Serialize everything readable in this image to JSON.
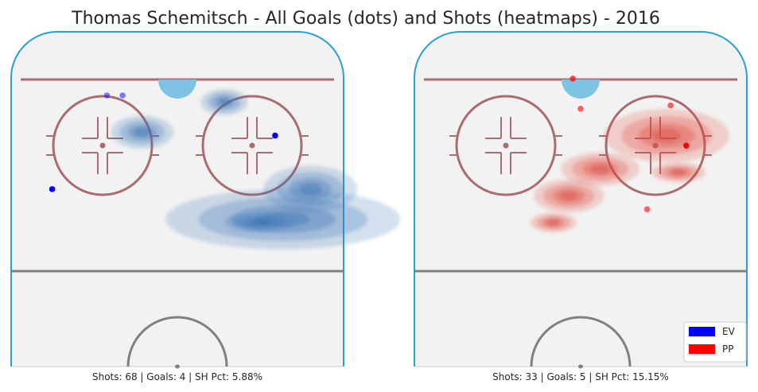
{
  "chart_data": {
    "type": "scatter",
    "title": "Thomas Schemitsch - All Goals (dots) and Shots (heatmaps) - 2016",
    "legend": {
      "placement": "bottom-right",
      "entries": [
        {
          "label": "EV",
          "color": "#0000ff"
        },
        {
          "label": "PP",
          "color": "#ff0000"
        }
      ]
    },
    "panels": [
      {
        "name": "EV",
        "caption": "Shots: 68 | Goals: 4 | SH Pct: 5.88%",
        "stats": {
          "shots": 68,
          "goals": 4,
          "sh_pct": 5.88
        },
        "goal_color": "#0000ff",
        "heat_color": "#3a76b8",
        "goals": [
          {
            "x": -18,
            "y": 81,
            "alpha": 0.5
          },
          {
            "x": -14,
            "y": 81,
            "alpha": 0.5
          },
          {
            "x": 25,
            "y": 69,
            "alpha": 1
          },
          {
            "x": -32,
            "y": 53,
            "alpha": 1
          }
        ],
        "heatmap": [
          {
            "x": -9,
            "y": 70,
            "w": 8,
            "h": 5
          },
          {
            "x": 12,
            "y": 79,
            "w": 6,
            "h": 4
          },
          {
            "x": 27,
            "y": 44,
            "w": 30,
            "h": 9
          },
          {
            "x": 34,
            "y": 53,
            "w": 12,
            "h": 7
          },
          {
            "x": 21,
            "y": 43,
            "w": 9,
            "h": 3
          }
        ]
      },
      {
        "name": "PP",
        "caption": "Shots: 33 | Goals: 5 | SH Pct: 15.15%",
        "stats": {
          "shots": 33,
          "goals": 5,
          "sh_pct": 15.15
        },
        "goal_color": "#ff0000",
        "heat_color": "#e2493a",
        "goals": [
          {
            "x": -2,
            "y": 86,
            "alpha": 0.7
          },
          {
            "x": 0,
            "y": 77,
            "alpha": 0.6
          },
          {
            "x": 23,
            "y": 78,
            "alpha": 0.6
          },
          {
            "x": 27,
            "y": 66,
            "alpha": 1
          },
          {
            "x": 17,
            "y": 47,
            "alpha": 0.6
          }
        ],
        "heatmap": [
          {
            "x": 22,
            "y": 69,
            "w": 16,
            "h": 8
          },
          {
            "x": 5,
            "y": 59,
            "w": 10,
            "h": 5
          },
          {
            "x": -3,
            "y": 51,
            "w": 9,
            "h": 5
          },
          {
            "x": -7,
            "y": 43,
            "w": 6,
            "h": 3
          },
          {
            "x": 25,
            "y": 58,
            "w": 7,
            "h": 3
          }
        ]
      }
    ],
    "xlim": [
      -42.5,
      42.5
    ],
    "ylim": [
      0,
      100
    ],
    "grid": false
  }
}
